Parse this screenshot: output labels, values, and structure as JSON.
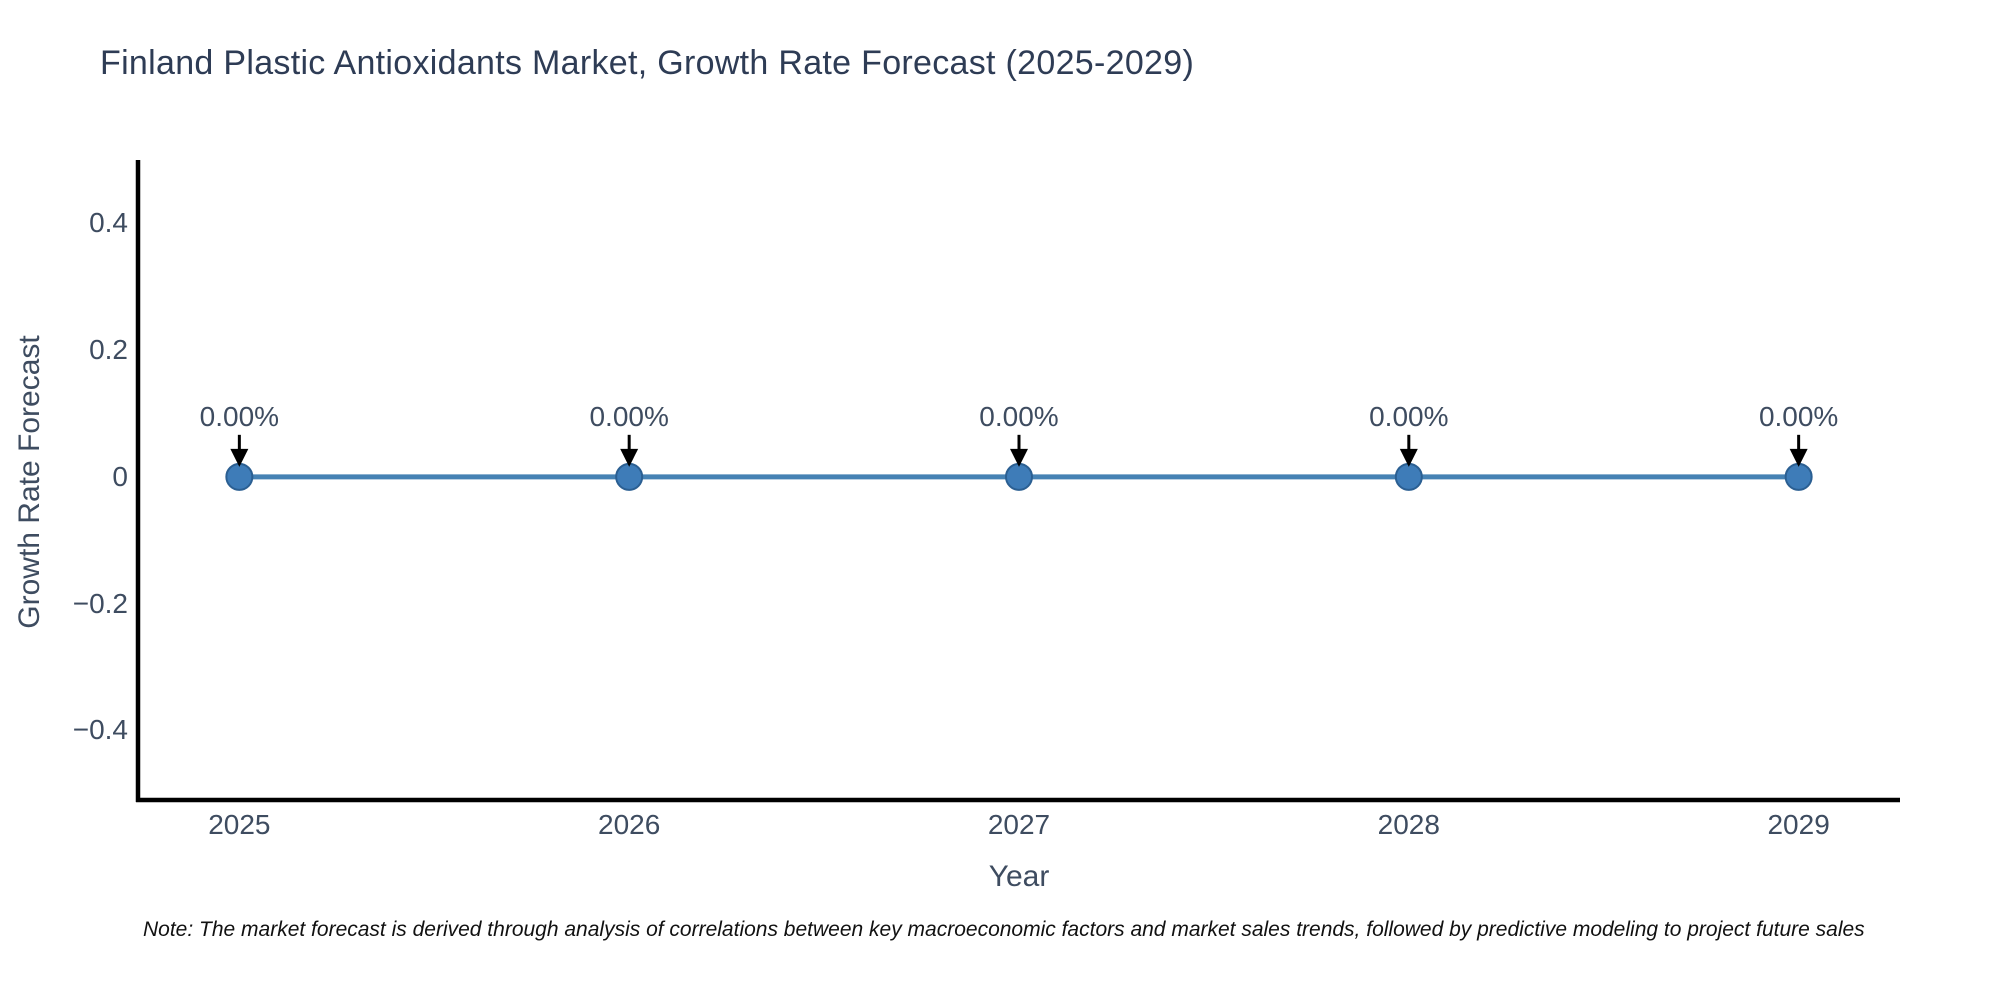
{
  "header": {
    "title": "Finland Plastic Antioxidants Market, Growth Rate Forecast (2025-2029)"
  },
  "footnote": {
    "text": "Note: The market forecast is derived through analysis of correlations between key macroeconomic factors and market sales trends, followed by predictive modeling to project future sales"
  },
  "chart_data": {
    "type": "line",
    "title": "Finland Plastic Antioxidants Market, Growth Rate Forecast (2025-2029)",
    "xlabel": "Year",
    "ylabel": "Growth Rate Forecast",
    "x": [
      2025,
      2026,
      2027,
      2028,
      2029
    ],
    "series": [
      {
        "name": "Growth Rate Forecast",
        "values": [
          0,
          0,
          0,
          0,
          0
        ]
      }
    ],
    "point_labels": [
      "0.00%",
      "0.00%",
      "0.00%",
      "0.00%",
      "0.00%"
    ],
    "xtick_labels": [
      "2025",
      "2026",
      "2027",
      "2028",
      "2029"
    ],
    "ytick_values": [
      0.4,
      0.2,
      0,
      -0.2,
      -0.4
    ],
    "ytick_labels": [
      "0.4",
      "0.2",
      "0",
      "−0.2",
      "−0.4"
    ],
    "xlim": [
      2024.74,
      2029.26
    ],
    "ylim": [
      -0.51,
      0.5
    ],
    "grid": false,
    "legend": false,
    "annotations_have_arrows": true,
    "colors": {
      "line": "#4682b4",
      "marker_fill": "#3e7cb8",
      "marker_edge": "#2b5f92",
      "axis": "#000000",
      "tick_text": "#3e4c60",
      "title_text": "#2e3c55",
      "annotation_arrow": "#000000",
      "note_text": "#111111"
    }
  }
}
